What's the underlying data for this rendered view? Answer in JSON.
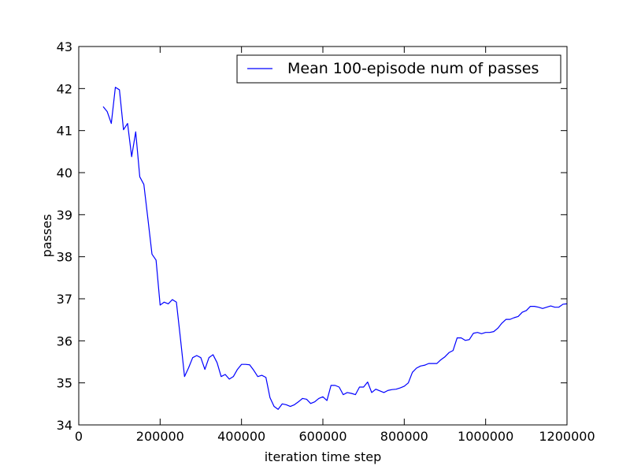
{
  "chart_data": {
    "type": "line",
    "title": "",
    "xlabel": "iteration time step",
    "ylabel": "passes",
    "xlim": [
      0,
      1200000
    ],
    "ylim": [
      34,
      43
    ],
    "x_ticks": [
      0,
      200000,
      400000,
      600000,
      800000,
      1000000,
      1200000
    ],
    "x_tick_labels": [
      "0",
      "200000",
      "400000",
      "600000",
      "800000",
      "1000000",
      "1200000"
    ],
    "y_ticks": [
      34,
      35,
      36,
      37,
      38,
      39,
      40,
      41,
      42,
      43
    ],
    "y_tick_labels": [
      "34",
      "35",
      "36",
      "37",
      "38",
      "39",
      "40",
      "41",
      "42",
      "43"
    ],
    "grid": false,
    "legend_position": "top-right",
    "series": [
      {
        "name": "Mean 100-episode num of passes",
        "color": "#0000ff",
        "x": [
          60000,
          70000,
          80000,
          90000,
          100000,
          110000,
          120000,
          130000,
          140000,
          150000,
          160000,
          170000,
          180000,
          190000,
          200000,
          210000,
          220000,
          230000,
          240000,
          250000,
          260000,
          270000,
          280000,
          290000,
          300000,
          310000,
          320000,
          330000,
          340000,
          350000,
          360000,
          370000,
          380000,
          390000,
          400000,
          410000,
          420000,
          430000,
          440000,
          450000,
          460000,
          470000,
          480000,
          490000,
          500000,
          510000,
          520000,
          530000,
          540000,
          550000,
          560000,
          570000,
          580000,
          590000,
          600000,
          610000,
          620000,
          630000,
          640000,
          650000,
          660000,
          670000,
          680000,
          690000,
          700000,
          710000,
          720000,
          730000,
          740000,
          750000,
          760000,
          770000,
          780000,
          790000,
          800000,
          810000,
          820000,
          830000,
          840000,
          850000,
          860000,
          870000,
          880000,
          890000,
          900000,
          910000,
          920000,
          930000,
          940000,
          950000,
          960000,
          970000,
          980000,
          990000,
          1000000,
          1010000,
          1020000,
          1030000,
          1040000,
          1050000,
          1060000,
          1070000,
          1080000,
          1090000,
          1100000,
          1110000,
          1120000,
          1130000,
          1140000,
          1150000,
          1160000,
          1170000,
          1180000,
          1190000,
          1200000
        ],
        "values": [
          41.57,
          41.45,
          41.17,
          42.03,
          41.97,
          41.02,
          41.17,
          40.38,
          40.97,
          39.9,
          39.72,
          38.9,
          38.06,
          37.92,
          36.85,
          36.92,
          36.88,
          36.98,
          36.92,
          36.05,
          35.15,
          35.36,
          35.6,
          35.65,
          35.6,
          35.32,
          35.6,
          35.67,
          35.48,
          35.15,
          35.2,
          35.09,
          35.15,
          35.32,
          35.44,
          35.44,
          35.43,
          35.3,
          35.15,
          35.18,
          35.13,
          34.65,
          34.44,
          34.37,
          34.5,
          34.48,
          34.44,
          34.48,
          34.55,
          34.63,
          34.61,
          34.51,
          34.55,
          34.63,
          34.67,
          34.58,
          34.94,
          34.94,
          34.9,
          34.72,
          34.77,
          34.75,
          34.72,
          34.9,
          34.9,
          35.02,
          34.77,
          34.85,
          34.81,
          34.77,
          34.82,
          34.84,
          34.85,
          34.88,
          34.92,
          35.0,
          35.25,
          35.35,
          35.4,
          35.42,
          35.46,
          35.46,
          35.46,
          35.55,
          35.62,
          35.72,
          35.77,
          36.07,
          36.07,
          36.01,
          36.03,
          36.18,
          36.2,
          36.17,
          36.2,
          36.2,
          36.22,
          36.3,
          36.42,
          36.51,
          36.51,
          36.55,
          36.58,
          36.68,
          36.72,
          36.82,
          36.82,
          36.8,
          36.77,
          36.8,
          36.83,
          36.8,
          36.8,
          36.87,
          36.88
        ]
      }
    ]
  }
}
